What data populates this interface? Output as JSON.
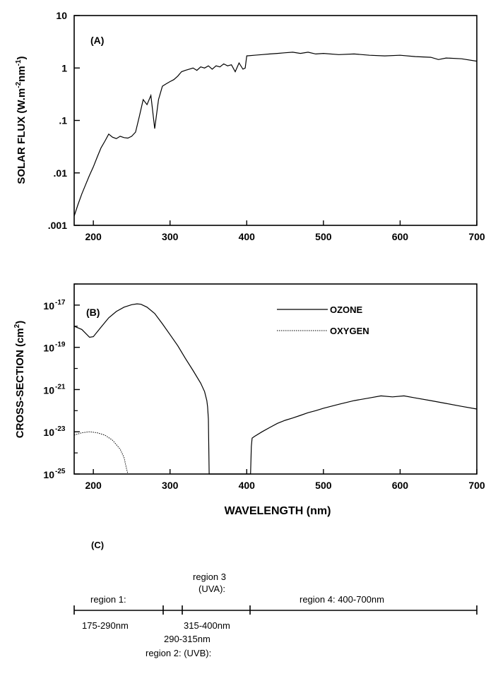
{
  "chart_data": [
    {
      "panel": "A",
      "panel_label": "(A)",
      "type": "line",
      "ylabel": "SOLAR FLUX (W.m-2nm-1)",
      "ylabel_parts": {
        "a": "SOLAR FLUX (W.m",
        "b": "-2",
        "c": "nm",
        "d": "-1",
        "e": ")"
      },
      "xlim": [
        175,
        700
      ],
      "ylim": [
        0.001,
        10
      ],
      "yscale": "log",
      "x_ticks": [
        "200",
        "300",
        "400",
        "500",
        "600",
        "700"
      ],
      "x_tick_values": [
        200,
        300,
        400,
        500,
        600,
        700
      ],
      "y_ticks": [
        "10",
        "1",
        ".1",
        ".01",
        ".001"
      ],
      "y_tick_values": [
        10,
        1,
        0.1,
        0.01,
        0.001
      ],
      "series": [
        {
          "x": [
            175,
            180,
            185,
            190,
            195,
            200,
            205,
            210,
            215,
            220,
            225,
            230,
            235,
            240,
            245,
            250,
            255,
            260,
            265,
            270,
            275,
            280,
            285,
            290,
            295,
            300,
            305,
            310,
            315,
            320,
            325,
            330,
            335,
            340,
            345,
            350,
            355,
            360,
            365,
            370,
            375,
            380,
            385,
            390,
            395,
            398,
            400,
            410,
            420,
            430,
            440,
            450,
            460,
            470,
            480,
            490,
            500,
            520,
            540,
            560,
            580,
            600,
            620,
            640,
            650,
            660,
            680,
            700
          ],
          "y": [
            0.0015,
            0.0025,
            0.004,
            0.006,
            0.009,
            0.013,
            0.02,
            0.03,
            0.04,
            0.055,
            0.048,
            0.045,
            0.05,
            0.047,
            0.046,
            0.05,
            0.06,
            0.12,
            0.25,
            0.2,
            0.3,
            0.07,
            0.25,
            0.45,
            0.5,
            0.55,
            0.6,
            0.7,
            0.85,
            0.9,
            0.95,
            1.0,
            0.9,
            1.05,
            1.0,
            1.1,
            0.95,
            1.1,
            1.05,
            1.2,
            1.1,
            1.15,
            0.85,
            1.25,
            0.95,
            1.0,
            1.7,
            1.75,
            1.8,
            1.85,
            1.9,
            1.95,
            2.0,
            1.9,
            2.0,
            1.85,
            1.9,
            1.8,
            1.85,
            1.75,
            1.7,
            1.75,
            1.65,
            1.6,
            1.45,
            1.55,
            1.5,
            1.35
          ]
        }
      ]
    },
    {
      "panel": "B",
      "panel_label": "(B)",
      "type": "line",
      "ylabel": "CROSS-SECTION (cm2)",
      "ylabel_parts": {
        "a": "CROSS-SECTION (cm",
        "b": "2",
        "c": ")"
      },
      "xlabel": "WAVELENGTH (nm)",
      "xlim": [
        175,
        700
      ],
      "ylim": [
        1e-25,
        1e-16
      ],
      "yscale": "log",
      "x_ticks": [
        "200",
        "300",
        "400",
        "500",
        "600",
        "700"
      ],
      "x_tick_values": [
        200,
        300,
        400,
        500,
        600,
        700
      ],
      "y_ticks": [
        {
          "base": "10",
          "exp": "-17",
          "value": 1e-17
        },
        {
          "base": "10",
          "exp": "-19",
          "value": 1e-19
        },
        {
          "base": "10",
          "exp": "-21",
          "value": 1e-21
        },
        {
          "base": "10",
          "exp": "-23",
          "value": 1e-23
        },
        {
          "base": "10",
          "exp": "-25",
          "value": 1e-25
        }
      ],
      "legend": [
        "OZONE",
        "OXYGEN"
      ],
      "series": [
        {
          "name": "OZONE",
          "style": "solid",
          "x": [
            175,
            185,
            195,
            200,
            210,
            220,
            230,
            240,
            250,
            257,
            262,
            270,
            280,
            290,
            300,
            310,
            320,
            330,
            340,
            345,
            348,
            349,
            350,
            351,
            405,
            406,
            407,
            410,
            420,
            430,
            440,
            450,
            460,
            470,
            480,
            490,
            500,
            520,
            540,
            560,
            575,
            590,
            605,
            620,
            640,
            660,
            680,
            700
          ],
          "y": [
            1e-18,
            7e-19,
            3e-19,
            3.2e-19,
            9e-19,
            2.5e-18,
            5e-18,
            8e-18,
            1.05e-17,
            1.15e-17,
            1.1e-17,
            8e-18,
            4e-18,
            1.3e-18,
            4e-19,
            1.2e-19,
            3e-20,
            8e-21,
            2e-21,
            8e-22,
            3e-22,
            1.5e-22,
            4e-23,
            1e-25,
            1e-25,
            2e-24,
            5e-24,
            6e-24,
            1e-23,
            1.6e-23,
            2.5e-23,
            3.5e-23,
            4.5e-23,
            6e-23,
            8e-23,
            1e-22,
            1.3e-22,
            2e-22,
            3e-22,
            4e-22,
            5e-22,
            4.5e-22,
            5e-22,
            4e-22,
            3e-22,
            2.2e-22,
            1.6e-22,
            1.2e-22
          ]
        },
        {
          "name": "OXYGEN",
          "style": "dotted",
          "x": [
            175,
            185,
            195,
            205,
            215,
            225,
            235,
            240,
            243,
            245
          ],
          "y": [
            7e-24,
            9e-24,
            1e-23,
            9e-24,
            7e-24,
            4e-24,
            1.5e-24,
            6e-25,
            2e-25,
            1e-25
          ]
        }
      ]
    }
  ],
  "panelC": {
    "label": "(C)",
    "region1_name": "region 1:",
    "region1_range": "175-290nm",
    "region2_range": "290-315nm",
    "region2_name": "region 2: (UVB):",
    "region3_name": "region 3",
    "region3_sub": "(UVA):",
    "region3_range": "315-400nm",
    "region4": "region 4: 400-700nm"
  }
}
